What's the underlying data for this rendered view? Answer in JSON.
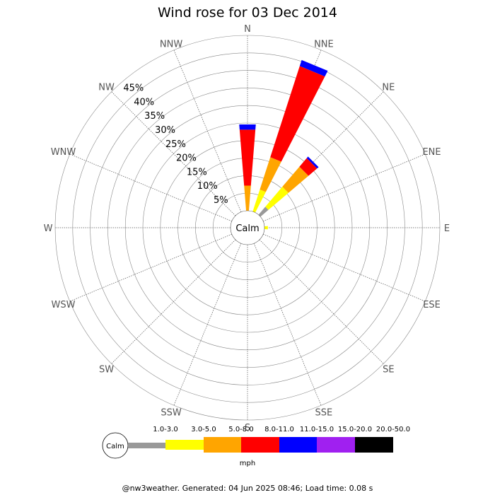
{
  "chart_data": {
    "type": "wind-rose",
    "title": "Wind rose for 03 Dec 2014",
    "directions": [
      "N",
      "NNE",
      "NE",
      "ENE",
      "E",
      "ESE",
      "SE",
      "SSE",
      "S",
      "SSW",
      "SW",
      "WSW",
      "W",
      "WNW",
      "NW",
      "NNW"
    ],
    "ring_labels": [
      "5%",
      "10%",
      "15%",
      "20%",
      "25%",
      "30%",
      "35%",
      "40%",
      "45%"
    ],
    "r_max_percent": 50,
    "calm_label": "Calm",
    "unit": "mph",
    "speed_bins": [
      {
        "label": "1.0-3.0",
        "color": "#999999"
      },
      {
        "label": "3.0-5.0",
        "color": "#ffff00"
      },
      {
        "label": "5.0-8.0",
        "color": "#ffa500"
      },
      {
        "label": "8.0-11.0",
        "color": "#ff0000"
      },
      {
        "label": "11.0-15.0",
        "color": "#0000ff"
      },
      {
        "label": "15.0-20.0",
        "color": "#a020f0"
      },
      {
        "label": "20.0-50.0",
        "color": "#000000"
      }
    ],
    "series": [
      {
        "direction": "N",
        "cumulative_percent": [
          0,
          0,
          7.2,
          23.2,
          24.7,
          24.7,
          24.7
        ]
      },
      {
        "direction": "NNE",
        "cumulative_percent": [
          0,
          6.6,
          16.3,
          43.6,
          45.4,
          45.4,
          45.4
        ]
      },
      {
        "direction": "NE",
        "cumulative_percent": [
          3.0,
          10.5,
          18.0,
          21.2,
          21.8,
          21.8,
          21.8
        ]
      },
      {
        "direction": "ENE",
        "cumulative_percent": [
          0,
          0,
          0,
          0,
          0,
          0,
          0
        ]
      },
      {
        "direction": "E",
        "cumulative_percent": [
          0,
          1.0,
          1.0,
          1.0,
          1.0,
          1.0,
          1.0
        ]
      }
    ]
  },
  "footer": "@nw3weather. Generated: 04 Jun 2025 08:46; Load time: 0.08 s"
}
